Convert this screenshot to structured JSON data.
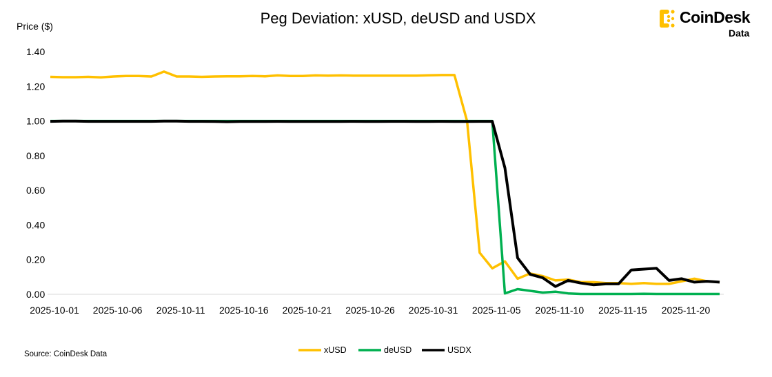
{
  "chart_data": {
    "type": "line",
    "title": "Peg Deviation: xUSD, deUSD and USDX",
    "ylabel": "Price ($)",
    "xlabel": "",
    "ylim": [
      0,
      1.4
    ],
    "yticks": [
      "0.00",
      "0.20",
      "0.40",
      "0.60",
      "0.80",
      "1.00",
      "1.20",
      "1.40"
    ],
    "x_start": "2025-10-01",
    "x_end": "2025-11-23",
    "xticks": [
      "2025-10-01",
      "2025-10-06",
      "2025-10-11",
      "2025-10-16",
      "2025-10-21",
      "2025-10-26",
      "2025-10-31",
      "2025-11-05",
      "2025-11-10",
      "2025-11-15",
      "2025-11-20"
    ],
    "grid": false,
    "legend_position": "bottom",
    "series": [
      {
        "name": "xUSD",
        "color": "#FFC000",
        "values": [
          1.255,
          1.253,
          1.253,
          1.255,
          1.252,
          1.257,
          1.26,
          1.26,
          1.257,
          1.285,
          1.257,
          1.257,
          1.255,
          1.257,
          1.258,
          1.258,
          1.26,
          1.258,
          1.263,
          1.26,
          1.26,
          1.263,
          1.262,
          1.263,
          1.262,
          1.262,
          1.262,
          1.262,
          1.262,
          1.262,
          1.264,
          1.265,
          1.265,
          1.0,
          0.24,
          0.15,
          0.19,
          0.09,
          0.12,
          0.105,
          0.08,
          0.085,
          0.07,
          0.07,
          0.065,
          0.065,
          0.06,
          0.065,
          0.06,
          0.06,
          0.075,
          0.09,
          0.075,
          0.07
        ]
      },
      {
        "name": "deUSD",
        "color": "#00B050",
        "values": [
          1.0,
          1.0,
          1.0,
          1.0,
          1.0,
          1.0,
          1.0,
          1.0,
          1.0,
          1.0,
          1.0,
          1.0,
          1.0,
          1.0,
          1.0,
          1.0,
          1.0,
          1.0,
          1.0,
          1.0,
          1.0,
          1.0,
          1.0,
          1.0,
          1.0,
          1.0,
          1.0,
          1.0,
          1.0,
          1.0,
          1.0,
          1.0,
          1.0,
          1.0,
          1.0,
          1.0,
          0.005,
          0.03,
          0.02,
          0.01,
          0.015,
          0.005,
          0.002,
          0.002,
          0.002,
          0.002,
          0.002,
          0.003,
          0.002,
          0.002,
          0.002,
          0.002,
          0.002,
          0.002
        ]
      },
      {
        "name": "USDX",
        "color": "#000000",
        "values": [
          0.998,
          0.999,
          0.999,
          0.998,
          0.998,
          0.998,
          0.998,
          0.998,
          0.998,
          0.999,
          0.999,
          0.998,
          0.998,
          0.997,
          0.996,
          0.997,
          0.997,
          0.997,
          0.998,
          0.997,
          0.997,
          0.997,
          0.997,
          0.997,
          0.998,
          0.997,
          0.997,
          0.998,
          0.998,
          0.997,
          0.997,
          0.998,
          0.997,
          0.997,
          0.998,
          0.998,
          0.73,
          0.21,
          0.115,
          0.095,
          0.045,
          0.08,
          0.065,
          0.055,
          0.06,
          0.06,
          0.14,
          0.145,
          0.15,
          0.08,
          0.09,
          0.07,
          0.075,
          0.07
        ]
      }
    ]
  },
  "source": "Source: CoinDesk Data",
  "logo": {
    "name": "CoinDesk",
    "sub": "Data"
  }
}
